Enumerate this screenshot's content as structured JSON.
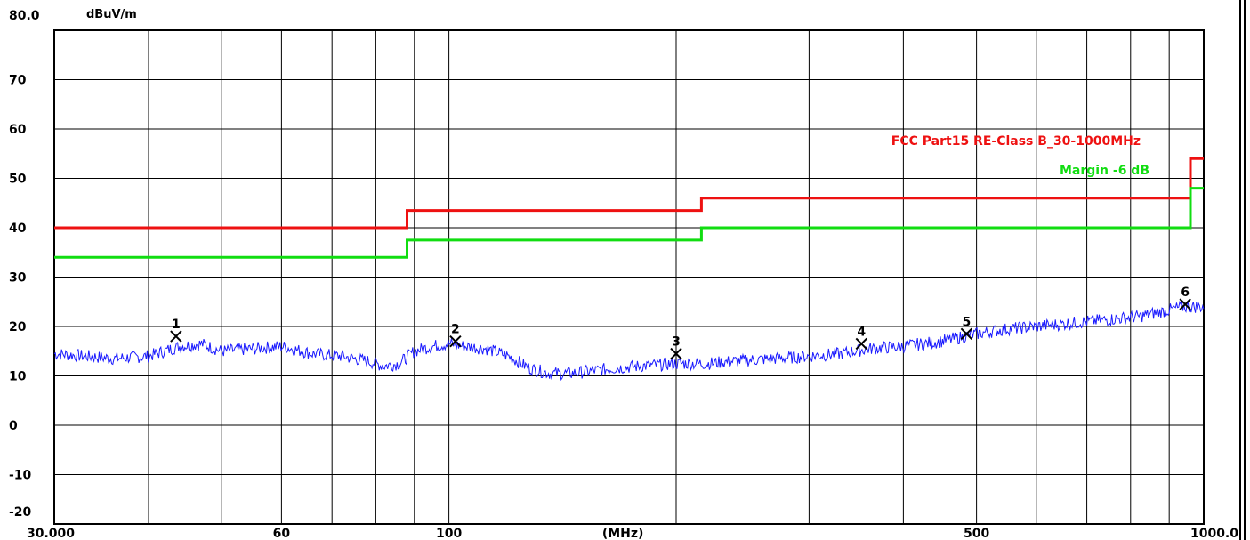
{
  "chart_data": {
    "type": "line",
    "y_unit": "dBuV/m",
    "x_unit": "(MHz)",
    "x_scale": "log",
    "xlim": [
      30,
      1000
    ],
    "ylim": [
      -20,
      80
    ],
    "y_ticks": [
      "80.0",
      "70",
      "60",
      "50",
      "40",
      "30",
      "20",
      "10",
      "0",
      "-10",
      "-20"
    ],
    "y_tick_values": [
      80,
      70,
      60,
      50,
      40,
      30,
      20,
      10,
      0,
      -10,
      -20
    ],
    "x_tick_labels": [
      {
        "value": 30,
        "label": "30.000"
      },
      {
        "value": 60,
        "label": "60"
      },
      {
        "value": 100,
        "label": "100"
      },
      {
        "value": 500,
        "label": "500"
      },
      {
        "value": 1000,
        "label": "1000.0"
      }
    ],
    "x_gridlines": [
      30,
      40,
      50,
      60,
      70,
      80,
      90,
      100,
      200,
      300,
      400,
      500,
      600,
      700,
      800,
      900,
      1000
    ],
    "grid": true,
    "colors": {
      "limit": "#ee1111",
      "margin": "#11dd11",
      "trace": "#1a1aff",
      "grid": "#000000"
    },
    "series": [
      {
        "name": "FCC Part15 RE-Class B_30-1000MHz",
        "role": "limit",
        "step": true,
        "x": [
          30,
          88,
          88,
          216,
          216,
          960,
          960,
          1000
        ],
        "y": [
          40.0,
          40.0,
          43.5,
          43.5,
          46.0,
          46.0,
          54.0,
          54.0
        ]
      },
      {
        "name": "Margin -6 dB",
        "role": "margin",
        "step": true,
        "x": [
          30,
          88,
          88,
          216,
          216,
          960,
          960,
          1000
        ],
        "y": [
          34.0,
          34.0,
          37.5,
          37.5,
          40.0,
          40.0,
          48.0,
          48.0
        ]
      },
      {
        "role": "trace",
        "x": [
          30,
          33,
          36,
          40,
          44,
          47,
          50,
          55,
          60,
          66,
          72,
          78,
          82,
          86,
          90,
          95,
          100,
          105,
          112,
          120,
          128,
          136,
          145,
          155,
          165,
          180,
          200,
          220,
          240,
          270,
          300,
          330,
          360,
          400,
          450,
          500,
          550,
          600,
          650,
          700,
          760,
          820,
          880,
          940,
          1000
        ],
        "y": [
          14.5,
          14.0,
          13.5,
          14.0,
          16.0,
          16.5,
          15.0,
          15.5,
          16.0,
          14.5,
          14.0,
          13.0,
          12.0,
          12.5,
          15.0,
          16.0,
          16.5,
          16.0,
          15.5,
          14.0,
          11.5,
          10.5,
          10.5,
          11.0,
          11.5,
          12.0,
          12.5,
          12.5,
          13.0,
          13.5,
          14.0,
          14.5,
          15.5,
          16.0,
          17.0,
          18.5,
          19.5,
          20.0,
          20.5,
          21.0,
          21.5,
          22.0,
          23.0,
          24.0,
          24.0
        ]
      }
    ],
    "markers": [
      {
        "label": "1",
        "x": 43.5,
        "y": 18.0
      },
      {
        "label": "2",
        "x": 102,
        "y": 17.0
      },
      {
        "label": "3",
        "x": 200,
        "y": 14.5
      },
      {
        "label": "4",
        "x": 352,
        "y": 16.5
      },
      {
        "label": "5",
        "x": 485,
        "y": 18.5
      },
      {
        "label": "6",
        "x": 945,
        "y": 24.5
      }
    ]
  }
}
